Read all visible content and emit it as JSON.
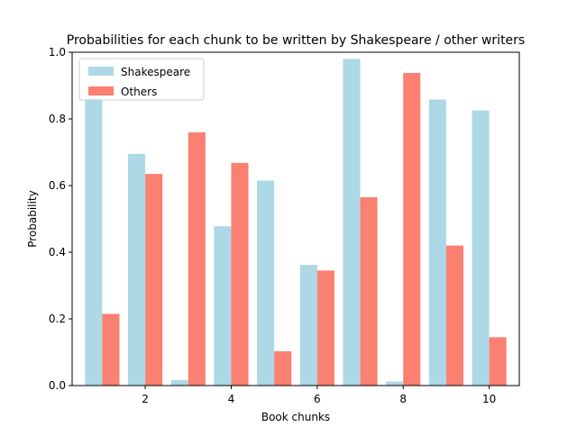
{
  "chart_data": {
    "type": "bar",
    "title": "Probabilities for each chunk to be written by Shakespeare / other writers",
    "xlabel": "Book chunks",
    "ylabel": "Probability",
    "x": [
      1,
      2,
      3,
      4,
      5,
      6,
      7,
      8,
      9,
      10
    ],
    "xticks": [
      2,
      4,
      6,
      8,
      10
    ],
    "yticks": [
      0.0,
      0.2,
      0.4,
      0.6,
      0.8,
      1.0
    ],
    "xlim": [
      0.3,
      10.7
    ],
    "ylim": [
      0,
      1.0
    ],
    "series": [
      {
        "name": "Shakespeare",
        "color": "#add8e6",
        "values": [
          0.863,
          0.695,
          0.016,
          0.478,
          0.615,
          0.362,
          0.98,
          0.012,
          0.858,
          0.825
        ]
      },
      {
        "name": "Others",
        "color": "#fa8072",
        "values": [
          0.215,
          0.635,
          0.76,
          0.668,
          0.103,
          0.345,
          0.565,
          0.938,
          0.42,
          0.145
        ]
      }
    ],
    "legend_position": "top-left",
    "grid": false
  }
}
